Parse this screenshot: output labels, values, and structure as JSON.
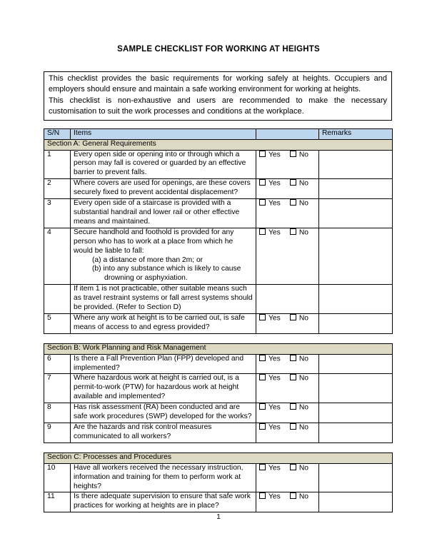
{
  "page": {
    "title": "SAMPLE CHECKLIST FOR WORKING AT HEIGHTS",
    "page_number": "1"
  },
  "intro": {
    "paragraphs": [
      "This checklist provides the basic requirements for working safely at heights. Occupiers and employers should ensure and maintain a safe working environment for working at heights.",
      "This checklist is non-exhaustive and users are recommended to make the necessary customisation to suit the work processes and conditions at the workplace."
    ]
  },
  "checklist": {
    "column_headers": {
      "sn": "S/N",
      "items": "Items",
      "response": "",
      "remarks": "Remarks"
    },
    "response_options": {
      "yes": "Yes",
      "no": "No"
    },
    "colors": {
      "header_bg": "#BDD6EE",
      "section_bg": "#DDD9C3",
      "border": "#000000",
      "page_bg": "#FFFFFF"
    },
    "sections": [
      {
        "id": "a",
        "title": "Section A: General Requirements",
        "show_column_headers": true,
        "rows": [
          {
            "sn": "1",
            "text": "Every open side or opening into or through which a person may fall is covered or guarded by an effective barrier to prevent falls.",
            "has_response": true
          },
          {
            "sn": "2",
            "text": "Where covers are used for openings, are these covers securely fixed to prevent accidental displacement?",
            "has_response": true
          },
          {
            "sn": "3",
            "text": "Every open side of a staircase is provided with a substantial handrail and lower rail or other effective means and maintained.",
            "has_response": true
          },
          {
            "sn": "4",
            "text": "Secure handhold and foothold is provided for any person who has to work at a place from which he would be liable to fall:",
            "subitems": [
              "(a) a distance of more than 2m; or",
              "(b) into any substance which is likely to cause drowning or asphyxiation."
            ],
            "has_response": true
          },
          {
            "sn": "",
            "text": "If item 1 is not practicable, other suitable means such as travel restraint systems or fall arrest systems should be provided. (Refer to Section D)",
            "has_response": false
          },
          {
            "sn": "5",
            "text": "Where any work at height is to be carried out, is safe means of access to and egress provided?",
            "has_response": true
          }
        ]
      },
      {
        "id": "b",
        "title": "Section B: Work Planning and Risk Management",
        "show_column_headers": false,
        "rows": [
          {
            "sn": "6",
            "text": "Is there a Fall Prevention Plan (FPP) developed and implemented?",
            "has_response": true
          },
          {
            "sn": "7",
            "text": "Where hazardous work at height is carried out, is a permit-to-work (PTW) for hazardous work at height available and implemented?",
            "has_response": true
          },
          {
            "sn": "8",
            "text": "Has risk assessment (RA) been conducted and are safe work procedures (SWP) developed for the works?",
            "has_response": true
          },
          {
            "sn": "9",
            "text": "Are the hazards and risk control measures communicated to all workers?",
            "has_response": true
          }
        ]
      },
      {
        "id": "c",
        "title": "Section C: Processes and Procedures",
        "show_column_headers": false,
        "rows": [
          {
            "sn": "10",
            "text": "Have all workers received the necessary instruction, information and training for them to perform work at heights?",
            "has_response": true
          },
          {
            "sn": "11",
            "text": "Is there adequate supervision to ensure that safe work practices for working at heights are in place?",
            "has_response": true
          }
        ]
      }
    ]
  }
}
